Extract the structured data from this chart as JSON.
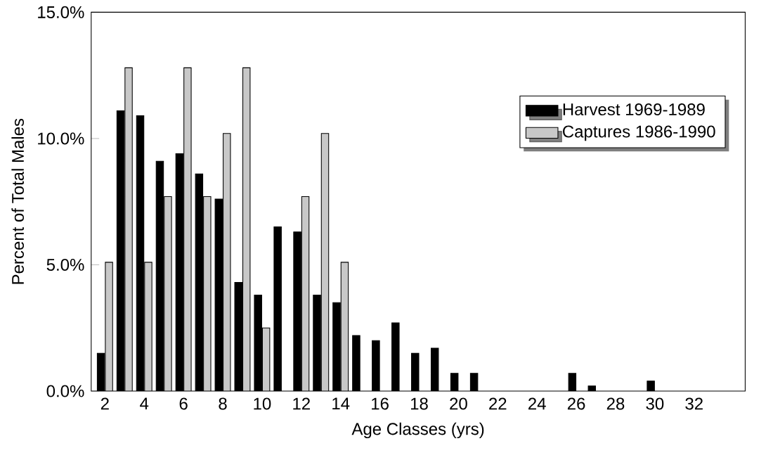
{
  "chart_data": {
    "type": "bar",
    "xlabel": "Age Classes (yrs)",
    "ylabel": "Percent of Total Males",
    "categories": [
      "2",
      null,
      "4",
      null,
      "6",
      null,
      "8",
      null,
      "10",
      null,
      "12",
      null,
      "14",
      null,
      "16",
      null,
      "18",
      null,
      "20",
      null,
      "22",
      null,
      "24",
      null,
      "26",
      null,
      "28",
      null,
      "30",
      null,
      "32"
    ],
    "series": [
      {
        "name": "Harvest 1969-1989",
        "color": "#000000",
        "values": [
          1.5,
          11.1,
          10.9,
          9.1,
          9.4,
          8.6,
          7.6,
          4.3,
          3.8,
          6.5,
          6.3,
          3.8,
          3.5,
          2.2,
          2.0,
          2.7,
          1.5,
          1.7,
          0.7,
          0.7,
          null,
          null,
          null,
          null,
          0.7,
          0.2,
          null,
          null,
          0.4,
          null,
          null
        ]
      },
      {
        "name": "Captures 1986-1990",
        "color": "#c8c8c8",
        "values": [
          5.1,
          12.8,
          5.1,
          7.7,
          12.8,
          7.7,
          10.2,
          12.8,
          2.5,
          null,
          7.7,
          10.2,
          5.1,
          null,
          null,
          null,
          null,
          null,
          null,
          null,
          null,
          null,
          null,
          null,
          null,
          null,
          null,
          null,
          null,
          null,
          null
        ]
      }
    ],
    "ylim": [
      0,
      15
    ],
    "yticks": [
      {
        "value": 0,
        "label": "0.0%"
      },
      {
        "value": 5,
        "label": "5.0%"
      },
      {
        "value": 10,
        "label": "10.0%"
      },
      {
        "value": 15,
        "label": "15.0%"
      }
    ],
    "legend": "right",
    "grid": false
  }
}
